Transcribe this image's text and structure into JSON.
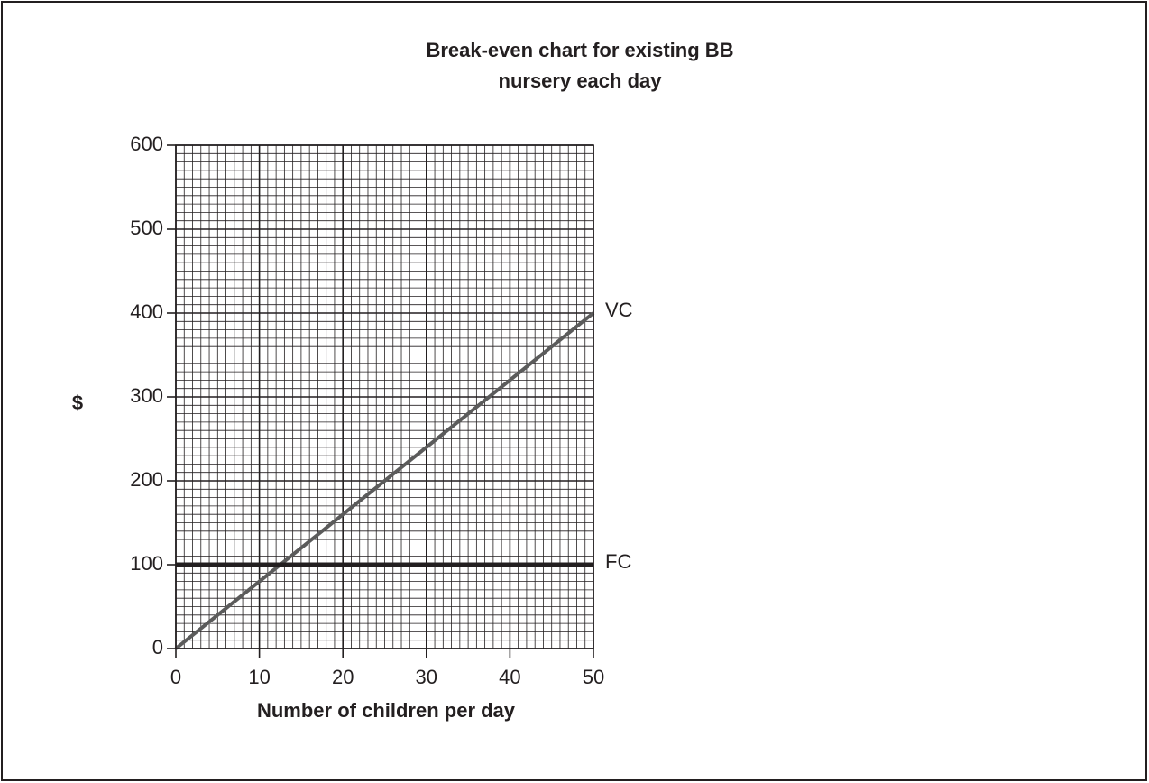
{
  "chart_data": {
    "type": "line",
    "title": [
      "Break-even chart for existing BB",
      "nursery each day"
    ],
    "x_label": "Number of children per day",
    "y_label": "$",
    "x": [
      0,
      50
    ],
    "series": [
      {
        "name": "VC",
        "color": "#5b5b5b",
        "values": [
          0,
          400
        ]
      },
      {
        "name": "FC",
        "color": "#231f20",
        "values": [
          100,
          100
        ]
      }
    ],
    "xlim": [
      0,
      50
    ],
    "xticks": [
      0,
      10,
      20,
      30,
      40,
      50
    ],
    "ylim": [
      0,
      600
    ],
    "yticks": [
      0,
      100,
      200,
      300,
      400,
      500,
      600
    ],
    "grid": true
  }
}
